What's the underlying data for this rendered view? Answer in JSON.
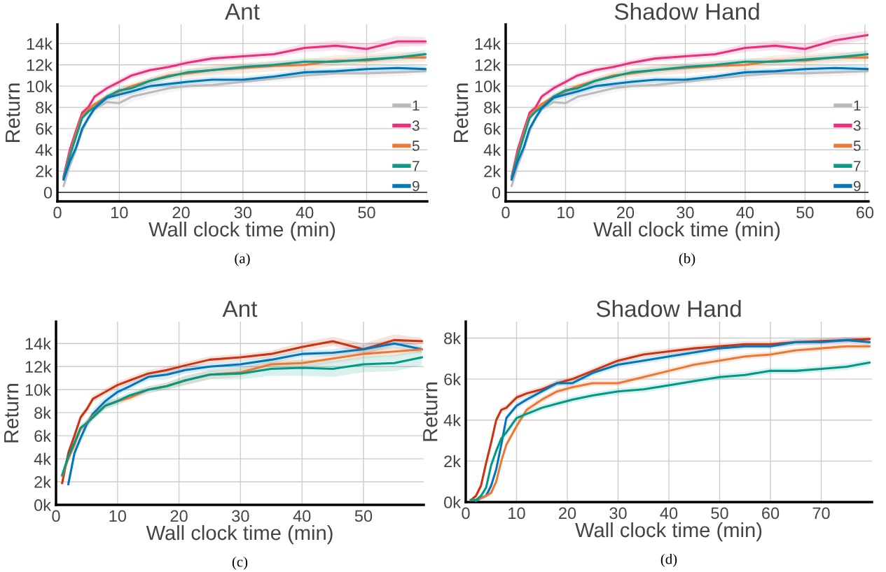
{
  "chart_data": [
    {
      "type": "line",
      "title": "Ant",
      "xlabel": "Wall clock time (min)",
      "ylabel": "Return",
      "annotations": [
        "(a)"
      ],
      "x": [
        1,
        2,
        3,
        4,
        5,
        6,
        8,
        10,
        12,
        15,
        18,
        21,
        25,
        30,
        35,
        40,
        45,
        50,
        55,
        59.5
      ],
      "xlim": [
        0,
        59.8
      ],
      "xticks": [
        0,
        10,
        20,
        30,
        40,
        50
      ],
      "ylim": [
        -850,
        15800
      ],
      "yticks": [
        0,
        {
          "value": 2000,
          "label": "2k"
        },
        {
          "value": 4000,
          "label": "4k"
        },
        {
          "value": 6000,
          "label": "6k"
        },
        {
          "value": 8000,
          "label": "8k"
        },
        {
          "value": 10000,
          "label": "10k"
        },
        {
          "value": 12000,
          "label": "12k"
        },
        {
          "value": 14000,
          "label": "14k"
        }
      ],
      "grid": true,
      "legend": "lower right",
      "ref_lines": [
        {
          "axis": "y",
          "value": 0,
          "color": "#000000"
        }
      ],
      "series": [
        {
          "name": "1",
          "color": "#bbbbbb",
          "values": [
            600,
            2500,
            4000,
            5800,
            7000,
            7800,
            8500,
            8400,
            9000,
            9400,
            9800,
            10000,
            10100,
            10400,
            10700,
            11000,
            11200,
            11200,
            11300,
            11400
          ],
          "lower": [
            400,
            2200,
            3600,
            5400,
            6600,
            7300,
            7900,
            7800,
            8500,
            9000,
            9400,
            9700,
            9800,
            10100,
            10400,
            10600,
            10800,
            10800,
            10900,
            11100
          ],
          "upper": [
            800,
            2800,
            4400,
            6200,
            7400,
            8300,
            9000,
            9000,
            9500,
            9800,
            10200,
            10300,
            10400,
            10700,
            11000,
            11400,
            11600,
            11600,
            11700,
            11700
          ]
        },
        {
          "name": "3",
          "color": "#e8317a",
          "values": [
            1500,
            4000,
            5800,
            7500,
            8000,
            9000,
            9800,
            10400,
            11000,
            11500,
            11800,
            12200,
            12600,
            12800,
            13000,
            13600,
            13800,
            13500,
            14200,
            14200
          ],
          "lower": [
            1300,
            3700,
            5500,
            7200,
            7700,
            8700,
            9500,
            10100,
            10700,
            11200,
            11500,
            11900,
            12300,
            12500,
            12700,
            13200,
            13400,
            13000,
            13700,
            13800
          ],
          "upper": [
            1700,
            4300,
            6100,
            7800,
            8300,
            9300,
            10100,
            10700,
            11300,
            11800,
            12100,
            12500,
            12900,
            13100,
            13300,
            14000,
            14300,
            14000,
            14700,
            14600
          ]
        },
        {
          "name": "5",
          "color": "#ee7733",
          "values": [
            1300,
            3600,
            5500,
            7200,
            7800,
            8300,
            9000,
            9500,
            10000,
            10500,
            11000,
            11200,
            11500,
            11700,
            11900,
            12000,
            12400,
            12400,
            12700,
            12700
          ],
          "lower": [
            1100,
            3300,
            5200,
            6900,
            7500,
            8000,
            8700,
            9200,
            9700,
            10200,
            10600,
            10800,
            11000,
            11200,
            11400,
            11500,
            11900,
            11900,
            12200,
            12300
          ],
          "upper": [
            1500,
            3900,
            5800,
            7500,
            8100,
            8600,
            9300,
            9800,
            10300,
            10800,
            11400,
            11600,
            12000,
            12200,
            12400,
            12500,
            12900,
            13000,
            13200,
            13200
          ]
        },
        {
          "name": "7",
          "color": "#119988",
          "values": [
            1300,
            3400,
            5200,
            7000,
            7600,
            8000,
            9000,
            9600,
            9800,
            10500,
            10900,
            11300,
            11500,
            11800,
            12000,
            12300,
            12300,
            12500,
            12700,
            13000
          ],
          "lower": [
            1100,
            3100,
            4900,
            6700,
            7300,
            7700,
            8700,
            9300,
            9500,
            10200,
            10600,
            11000,
            11200,
            11500,
            11700,
            12000,
            12000,
            12200,
            12400,
            12600
          ],
          "upper": [
            1500,
            3700,
            5500,
            7300,
            7900,
            8300,
            9300,
            9900,
            10100,
            10800,
            11200,
            11600,
            11800,
            12100,
            12300,
            12600,
            12600,
            12800,
            13000,
            13400
          ]
        },
        {
          "name": "9",
          "color": "#0077bb",
          "values": [
            1200,
            2900,
            4200,
            6000,
            7000,
            7900,
            8900,
            9200,
            9500,
            10000,
            10200,
            10400,
            10600,
            10600,
            10900,
            11300,
            11400,
            11600,
            11700,
            11600
          ],
          "lower": [
            1000,
            2600,
            3900,
            5700,
            6700,
            7600,
            8600,
            8900,
            9200,
            9700,
            9900,
            10100,
            10300,
            10300,
            10600,
            11000,
            11100,
            11300,
            11400,
            11300
          ],
          "upper": [
            1400,
            3200,
            4500,
            6300,
            7300,
            8200,
            9200,
            9500,
            9800,
            10300,
            10500,
            10700,
            10900,
            10900,
            11200,
            11600,
            11700,
            11900,
            12000,
            11900
          ]
        }
      ]
    },
    {
      "type": "line",
      "title": "Shadow Hand",
      "xlabel": "Wall clock time (min)",
      "ylabel": "Return",
      "annotations": [
        "(b)"
      ],
      "x": [
        1,
        2,
        3,
        4,
        5,
        6,
        8,
        10,
        12,
        15,
        18,
        21,
        25,
        30,
        35,
        40,
        45,
        50,
        55,
        60.5
      ],
      "xlim": [
        0,
        60.6
      ],
      "xticks": [
        0,
        10,
        20,
        30,
        40,
        50,
        60
      ],
      "ylim": [
        -850,
        15800
      ],
      "yticks": [
        0,
        {
          "value": 2000,
          "label": "2k"
        },
        {
          "value": 4000,
          "label": "4k"
        },
        {
          "value": 6000,
          "label": "6k"
        },
        {
          "value": 8000,
          "label": "8k"
        },
        {
          "value": 10000,
          "label": "10k"
        },
        {
          "value": 12000,
          "label": "12k"
        },
        {
          "value": 14000,
          "label": "14k"
        }
      ],
      "grid": true,
      "legend": "lower right",
      "ref_lines": [
        {
          "axis": "y",
          "value": 0,
          "color": "#000000"
        }
      ],
      "series": [
        {
          "name": "1",
          "color": "#bbbbbb",
          "values": [
            600,
            2500,
            4000,
            5800,
            7000,
            7800,
            8500,
            8400,
            9000,
            9400,
            9800,
            10000,
            10100,
            10400,
            10700,
            11000,
            11200,
            11200,
            11300,
            11400
          ],
          "lower": [
            400,
            2200,
            3600,
            5400,
            6600,
            7300,
            7900,
            7800,
            8500,
            9000,
            9400,
            9700,
            9800,
            10100,
            10400,
            10600,
            10800,
            10800,
            10900,
            11100
          ],
          "upper": [
            800,
            2800,
            4400,
            6200,
            7400,
            8300,
            9000,
            9000,
            9500,
            9800,
            10200,
            10300,
            10400,
            10700,
            11000,
            11400,
            11600,
            11600,
            11700,
            11700
          ]
        },
        {
          "name": "3",
          "color": "#e8317a",
          "values": [
            1500,
            4000,
            5800,
            7500,
            8000,
            9000,
            9800,
            10400,
            11000,
            11500,
            11800,
            12200,
            12600,
            12800,
            13000,
            13600,
            13800,
            13500,
            14300,
            14800
          ],
          "lower": [
            1300,
            3700,
            5500,
            7200,
            7700,
            8700,
            9500,
            10100,
            10700,
            11200,
            11500,
            11900,
            12300,
            12500,
            12700,
            13200,
            13400,
            13000,
            13800,
            14400
          ],
          "upper": [
            1700,
            4300,
            6100,
            7800,
            8300,
            9300,
            10100,
            10700,
            11300,
            11800,
            12100,
            12500,
            12900,
            13100,
            13300,
            14000,
            14300,
            14000,
            14800,
            15200
          ]
        },
        {
          "name": "5",
          "color": "#ee7733",
          "values": [
            1300,
            3600,
            5500,
            7200,
            7800,
            8300,
            9000,
            9500,
            10000,
            10500,
            11000,
            11200,
            11500,
            11700,
            11900,
            12000,
            12400,
            12400,
            12700,
            12700
          ],
          "lower": [
            1100,
            3300,
            5200,
            6900,
            7500,
            8000,
            8700,
            9200,
            9700,
            10200,
            10600,
            10800,
            11000,
            11200,
            11400,
            11500,
            11900,
            11900,
            12200,
            12300
          ],
          "upper": [
            1500,
            3900,
            5800,
            7500,
            8100,
            8600,
            9300,
            9800,
            10300,
            10800,
            11400,
            11600,
            12000,
            12200,
            12400,
            12500,
            12900,
            13000,
            13200,
            13200
          ]
        },
        {
          "name": "7",
          "color": "#119988",
          "values": [
            1300,
            3400,
            5200,
            7000,
            7600,
            8000,
            9000,
            9600,
            9800,
            10500,
            10900,
            11300,
            11500,
            11800,
            12000,
            12300,
            12300,
            12500,
            12700,
            13000
          ],
          "lower": [
            1100,
            3100,
            4900,
            6700,
            7300,
            7700,
            8700,
            9300,
            9500,
            10200,
            10600,
            11000,
            11200,
            11500,
            11700,
            12000,
            12000,
            12200,
            12400,
            12600
          ],
          "upper": [
            1500,
            3700,
            5500,
            7300,
            7900,
            8300,
            9300,
            9900,
            10100,
            10800,
            11200,
            11600,
            11800,
            12100,
            12300,
            12600,
            12600,
            12800,
            13000,
            13400
          ]
        },
        {
          "name": "9",
          "color": "#0077bb",
          "values": [
            1200,
            2900,
            4200,
            6000,
            7000,
            7900,
            8900,
            9200,
            9500,
            10000,
            10200,
            10400,
            10600,
            10600,
            10900,
            11300,
            11400,
            11600,
            11700,
            11600
          ],
          "lower": [
            1000,
            2600,
            3900,
            5700,
            6700,
            7600,
            8600,
            8900,
            9200,
            9700,
            9900,
            10100,
            10300,
            10300,
            10600,
            11000,
            11100,
            11300,
            11400,
            11300
          ],
          "upper": [
            1400,
            3200,
            4500,
            6300,
            7300,
            8200,
            9200,
            9500,
            9800,
            10300,
            10500,
            10700,
            10900,
            10900,
            11200,
            11600,
            11700,
            11900,
            12000,
            11900
          ]
        }
      ]
    },
    {
      "type": "line",
      "title": "Ant",
      "xlabel": "Wall clock time (min)",
      "ylabel": "Return",
      "annotations": [
        "(c)"
      ],
      "x": [
        1,
        2,
        3,
        4,
        5,
        6,
        8,
        10,
        12,
        15,
        18,
        21,
        25,
        30,
        35,
        40,
        45,
        50,
        55,
        59.5
      ],
      "xlim": [
        0,
        59.8
      ],
      "xticks": [
        0,
        10,
        20,
        30,
        40,
        50
      ],
      "ylim": [
        0,
        15900
      ],
      "yticks": [
        {
          "value": 0,
          "label": "0k"
        },
        {
          "value": 2000,
          "label": "2k"
        },
        {
          "value": 4000,
          "label": "4k"
        },
        {
          "value": 6000,
          "label": "6k"
        },
        {
          "value": 8000,
          "label": "8k"
        },
        {
          "value": 10000,
          "label": "10k"
        },
        {
          "value": 12000,
          "label": "12k"
        },
        {
          "value": 14000,
          "label": "14k"
        }
      ],
      "grid": true,
      "series": [
        {
          "color": "#cc3311",
          "values": [
            1900,
            4500,
            6000,
            7600,
            8300,
            9200,
            9800,
            10400,
            10800,
            11400,
            11700,
            12100,
            12600,
            12800,
            13100,
            13700,
            14200,
            13500,
            14300,
            14200
          ],
          "lower": [
            1700,
            4200,
            5700,
            7300,
            8000,
            8900,
            9500,
            10100,
            10500,
            11100,
            11400,
            11800,
            12300,
            12500,
            12800,
            13300,
            13800,
            13100,
            13800,
            13900
          ],
          "upper": [
            2100,
            4800,
            6300,
            7900,
            8600,
            9500,
            10100,
            10700,
            11100,
            11700,
            12000,
            12400,
            12900,
            13100,
            13400,
            14100,
            14600,
            14000,
            14800,
            14500
          ]
        },
        {
          "color": "#0077bb",
          "values": [
            null,
            1800,
            4500,
            5800,
            7000,
            7900,
            9000,
            9800,
            10300,
            11100,
            11300,
            11700,
            12000,
            12200,
            12600,
            13100,
            13200,
            13500,
            14000,
            13500
          ],
          "lower": [
            null,
            1500,
            4100,
            5400,
            6600,
            7500,
            8600,
            9500,
            10000,
            10800,
            10900,
            11400,
            11700,
            11900,
            12300,
            12800,
            12900,
            13100,
            13600,
            13200
          ],
          "upper": [
            null,
            2100,
            4900,
            6200,
            7400,
            8300,
            9400,
            10100,
            10600,
            11400,
            11700,
            12000,
            12300,
            12500,
            12900,
            13400,
            13500,
            13900,
            14400,
            13800
          ]
        },
        {
          "color": "#ee7733",
          "values": [
            2500,
            4000,
            5200,
            6600,
            7100,
            7700,
            8600,
            9000,
            9300,
            10000,
            10300,
            10800,
            11300,
            11500,
            12200,
            12300,
            12700,
            13100,
            13300,
            13500
          ],
          "lower": [
            2300,
            3700,
            4900,
            6300,
            6800,
            7400,
            8300,
            8700,
            9000,
            9700,
            10000,
            10400,
            10900,
            11100,
            11800,
            11900,
            12300,
            12700,
            12900,
            13200
          ],
          "upper": [
            2700,
            4300,
            5500,
            6900,
            7400,
            8000,
            8900,
            9300,
            9600,
            10300,
            10600,
            11200,
            11700,
            11900,
            12600,
            12700,
            13100,
            13500,
            13700,
            13800
          ]
        },
        {
          "color": "#009988",
          "values": [
            2600,
            4200,
            5400,
            6700,
            7100,
            7600,
            8600,
            9000,
            9500,
            10000,
            10300,
            10800,
            11300,
            11400,
            11800,
            11900,
            11800,
            12200,
            12300,
            12800
          ],
          "lower": [
            2400,
            3900,
            5100,
            6400,
            6800,
            7300,
            8300,
            8700,
            9200,
            9700,
            10000,
            10400,
            10900,
            10900,
            11200,
            11200,
            11100,
            11500,
            11600,
            12100
          ],
          "upper": [
            2800,
            4500,
            5700,
            7000,
            7400,
            7900,
            8900,
            9300,
            9800,
            10300,
            10600,
            11200,
            11700,
            11900,
            12400,
            12600,
            12500,
            12900,
            13000,
            13500
          ]
        }
      ]
    },
    {
      "type": "line",
      "title": "Shadow Hand",
      "xlabel": "Wall clock time (min)",
      "ylabel": "Return",
      "annotations": [
        "(d)"
      ],
      "x": [
        1,
        2,
        3,
        4,
        5,
        6,
        7,
        8,
        10,
        12,
        15,
        18,
        21,
        25,
        30,
        35,
        40,
        45,
        50,
        55,
        60,
        65,
        70,
        75,
        79.5
      ],
      "xlim": [
        0,
        80
      ],
      "xticks": [
        0,
        10,
        20,
        30,
        40,
        50,
        60,
        70
      ],
      "ylim": [
        0,
        8800
      ],
      "yticks": [
        {
          "value": 0,
          "label": "0k"
        },
        {
          "value": 2000,
          "label": "2k"
        },
        {
          "value": 4000,
          "label": "4k"
        },
        {
          "value": 6000,
          "label": "6k"
        },
        {
          "value": 8000,
          "label": "8k"
        }
      ],
      "grid": true,
      "series": [
        {
          "color": "#cc3311",
          "values": [
            100,
            300,
            800,
            1900,
            2900,
            4000,
            4500,
            4600,
            5100,
            5300,
            5500,
            5800,
            6000,
            6400,
            6900,
            7200,
            7350,
            7500,
            7600,
            7700,
            7700,
            7800,
            7850,
            7900,
            7950
          ],
          "lower": [
            50,
            200,
            650,
            1750,
            2750,
            3850,
            4350,
            4450,
            4950,
            5150,
            5350,
            5650,
            5850,
            6250,
            6750,
            7050,
            7200,
            7350,
            7450,
            7550,
            7550,
            7650,
            7700,
            7750,
            7800
          ],
          "upper": [
            150,
            400,
            950,
            2050,
            3050,
            4150,
            4650,
            4750,
            5250,
            5450,
            5650,
            5950,
            6150,
            6550,
            7050,
            7350,
            7500,
            7650,
            7750,
            7850,
            7850,
            7950,
            8000,
            8050,
            8100
          ]
        },
        {
          "color": "#0077bb",
          "values": [
            null,
            50,
            200,
            300,
            800,
            1600,
            2800,
            4100,
            4700,
            5000,
            5400,
            5800,
            5800,
            6300,
            6700,
            6900,
            7100,
            7300,
            7500,
            7600,
            7600,
            7800,
            7800,
            7900,
            7800
          ],
          "lower": [
            null,
            0,
            100,
            200,
            650,
            1450,
            2650,
            3950,
            4550,
            4850,
            5250,
            5650,
            5650,
            6150,
            6550,
            6750,
            6950,
            7150,
            7350,
            7450,
            7450,
            7650,
            7650,
            7750,
            7650
          ],
          "upper": [
            null,
            100,
            300,
            400,
            950,
            1750,
            2950,
            4250,
            4850,
            5150,
            5550,
            5950,
            5950,
            6450,
            6850,
            7050,
            7250,
            7450,
            7650,
            7750,
            7750,
            7950,
            7950,
            8050,
            7950
          ]
        },
        {
          "color": "#ee7733",
          "values": [
            100,
            100,
            200,
            300,
            450,
            1000,
            2000,
            2800,
            3700,
            4500,
            5000,
            5400,
            5600,
            5800,
            5800,
            6100,
            6400,
            6700,
            6900,
            7100,
            7200,
            7400,
            7500,
            7600,
            7600
          ],
          "lower": [
            50,
            50,
            100,
            200,
            300,
            850,
            1850,
            2650,
            3550,
            4350,
            4850,
            5250,
            5450,
            5650,
            5650,
            5950,
            6250,
            6550,
            6750,
            6950,
            7050,
            7250,
            7350,
            7450,
            7450
          ],
          "upper": [
            150,
            150,
            300,
            400,
            600,
            1150,
            2150,
            2950,
            3850,
            4650,
            5150,
            5550,
            5750,
            5950,
            5950,
            6250,
            6550,
            6850,
            7050,
            7250,
            7350,
            7550,
            7650,
            7750,
            7750
          ]
        },
        {
          "color": "#009988",
          "values": [
            100,
            100,
            300,
            700,
            1800,
            2500,
            3100,
            3400,
            4100,
            4300,
            4600,
            4800,
            5000,
            5200,
            5400,
            5500,
            5700,
            5900,
            6100,
            6200,
            6400,
            6400,
            6500,
            6600,
            6800
          ],
          "lower": [
            50,
            50,
            200,
            550,
            1650,
            2350,
            2950,
            3250,
            3950,
            4150,
            4450,
            4650,
            4850,
            5050,
            5250,
            5350,
            5550,
            5750,
            5950,
            6050,
            6250,
            6250,
            6350,
            6450,
            6650
          ],
          "upper": [
            150,
            150,
            400,
            850,
            1950,
            2650,
            3250,
            3550,
            4250,
            4450,
            4750,
            4950,
            5150,
            5350,
            5550,
            5650,
            5850,
            6050,
            6250,
            6350,
            6550,
            6550,
            6650,
            6750,
            6950
          ]
        }
      ]
    }
  ]
}
